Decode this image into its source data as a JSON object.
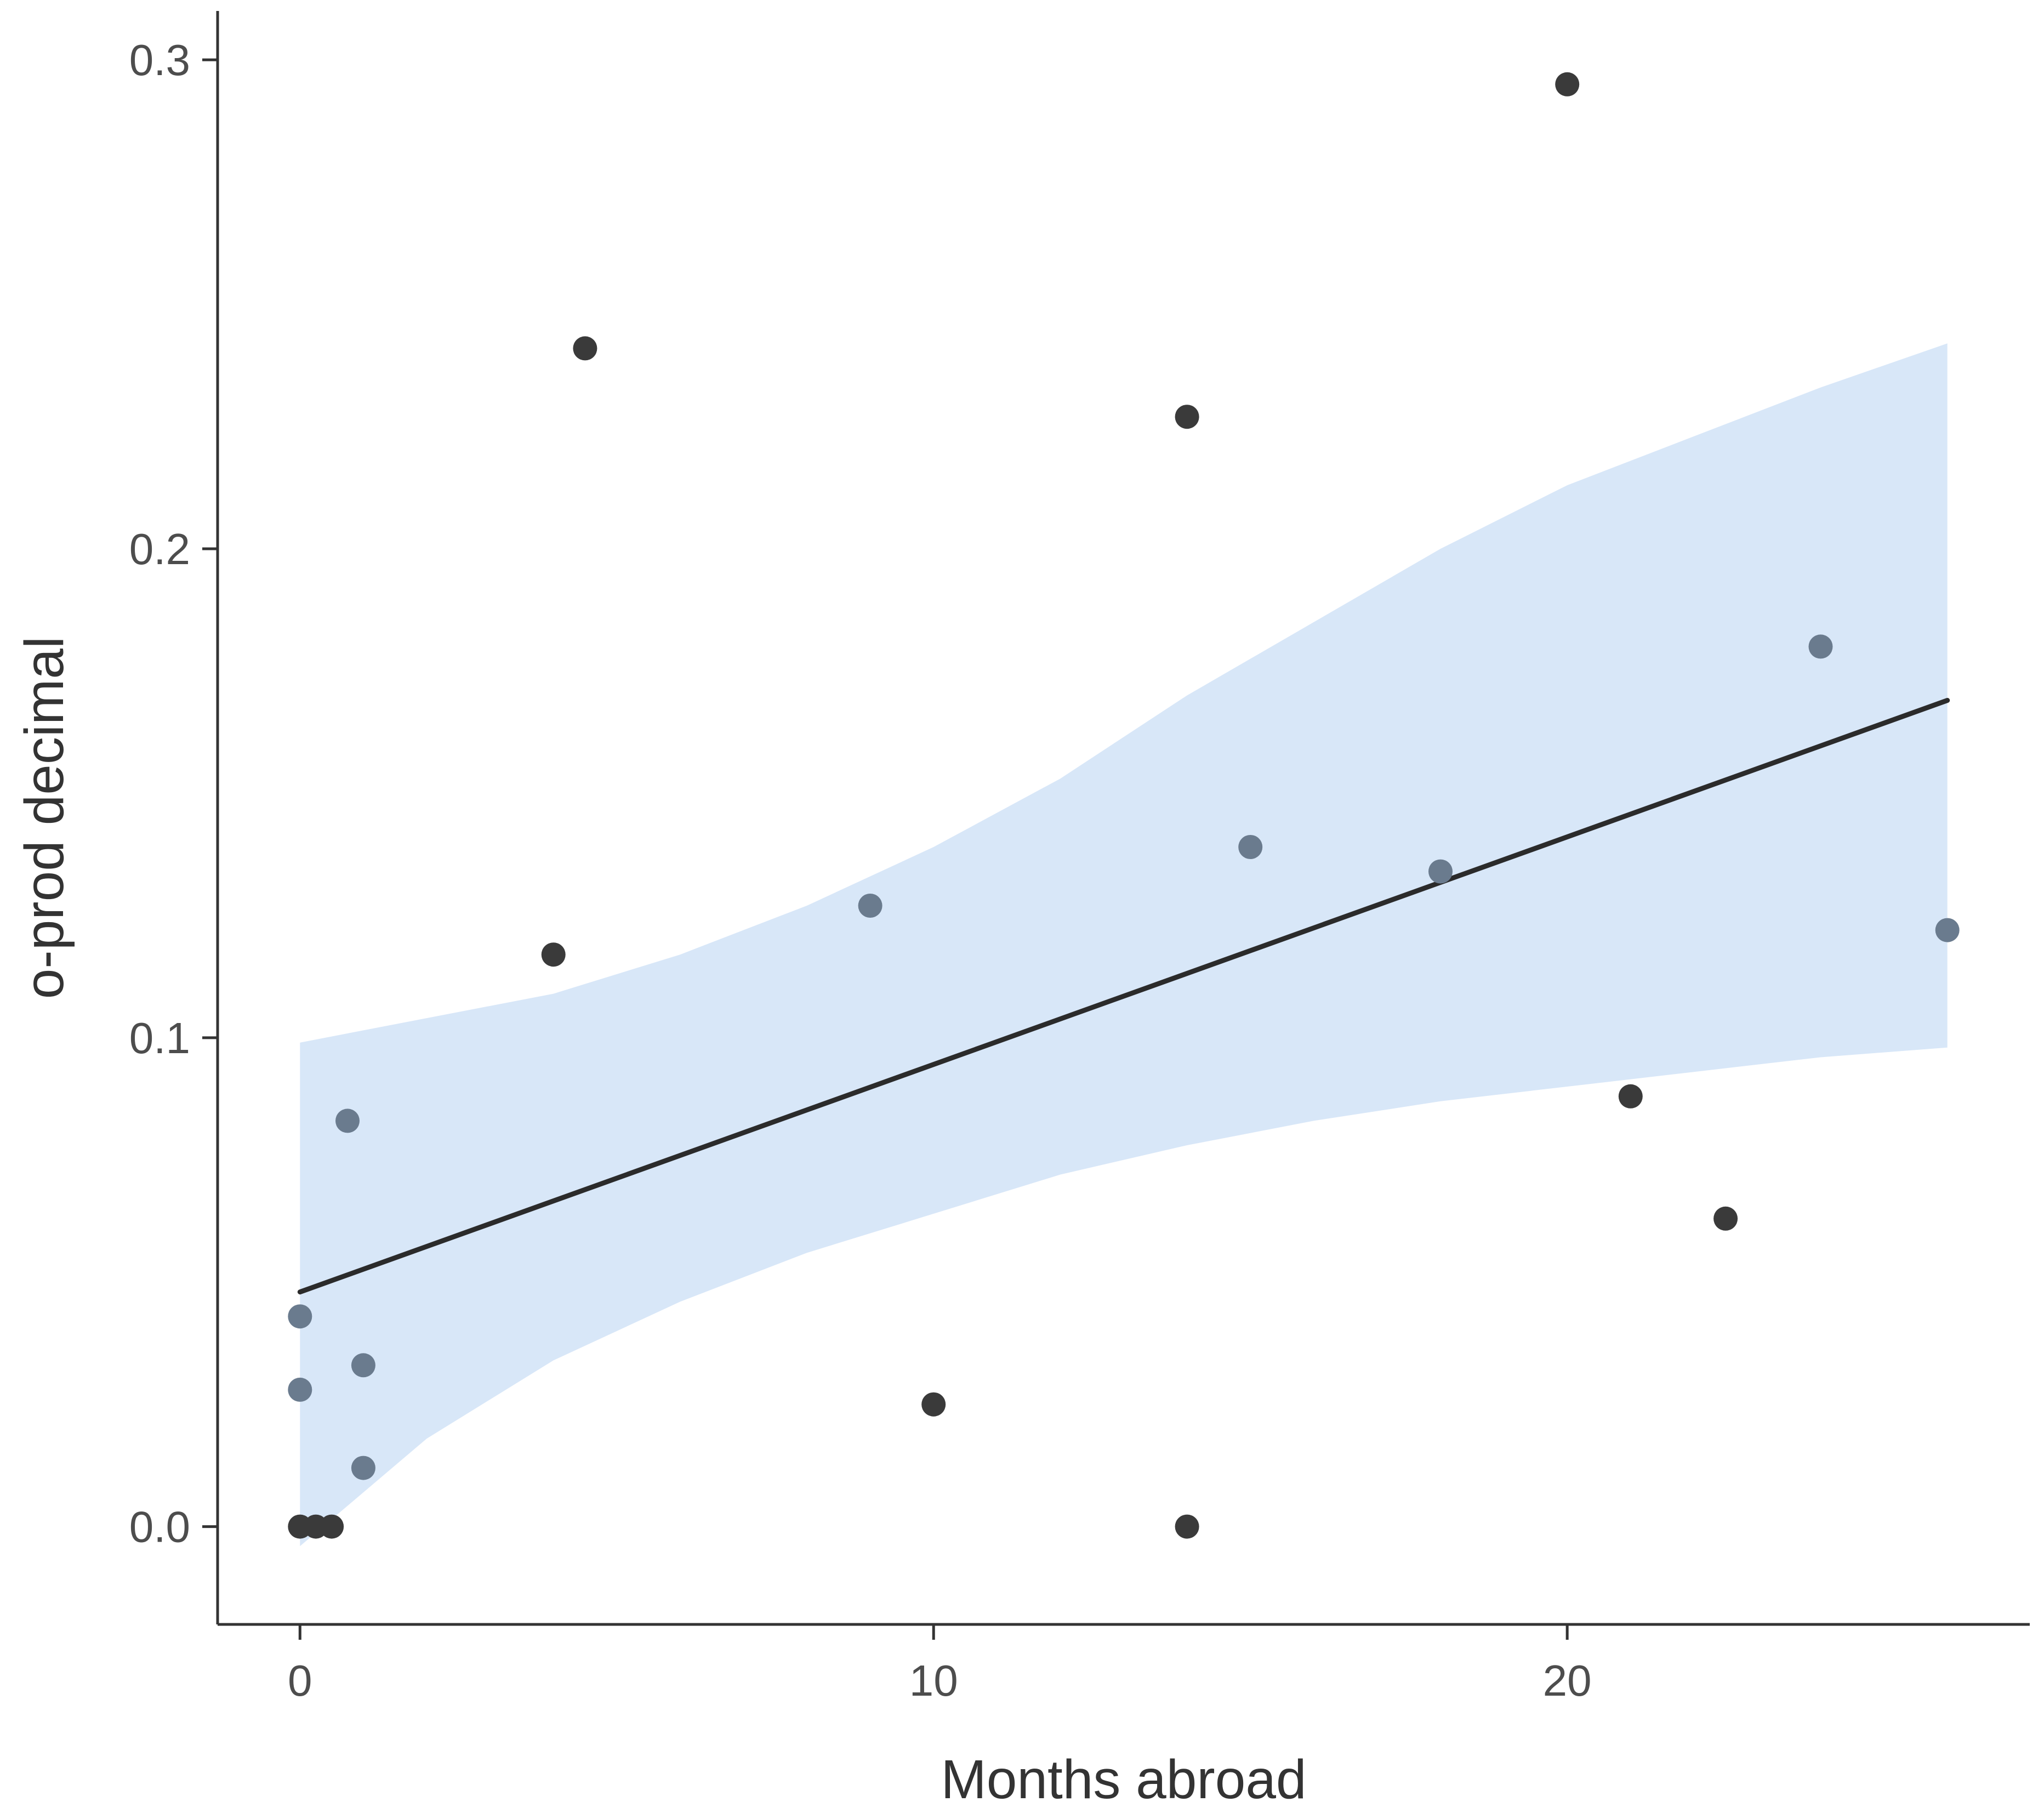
{
  "chart_data": {
    "type": "scatter",
    "title": "",
    "xlabel": "Months abroad",
    "ylabel": "o-prod decimal",
    "xlim": [
      -1.3,
      27.3
    ],
    "ylim": [
      -0.02,
      0.31
    ],
    "x_ticks": [
      {
        "value": 0,
        "label": "0"
      },
      {
        "value": 10,
        "label": "10"
      },
      {
        "value": 20,
        "label": "20"
      }
    ],
    "y_ticks": [
      {
        "value": 0.0,
        "label": "0.0"
      },
      {
        "value": 0.1,
        "label": "0.1"
      },
      {
        "value": 0.2,
        "label": "0.2"
      },
      {
        "value": 0.3,
        "label": "0.3"
      }
    ],
    "grid": false,
    "colors": {
      "point": "#3a3a3a",
      "point_overlap_band": "#6a7b8e",
      "fit_line": "#2b2b2b",
      "confidence_band": "#d8e7f8",
      "axis": "#333333",
      "tick_label": "#4d4d4d"
    },
    "series": [
      {
        "name": "observations",
        "points": [
          {
            "x": 0,
            "y": 0.0
          },
          {
            "x": 0.25,
            "y": 0.0
          },
          {
            "x": 0.5,
            "y": 0.0
          },
          {
            "x": 0,
            "y": 0.028
          },
          {
            "x": 0,
            "y": 0.043
          },
          {
            "x": 0.75,
            "y": 0.083
          },
          {
            "x": 1,
            "y": 0.033
          },
          {
            "x": 1,
            "y": 0.012
          },
          {
            "x": 4,
            "y": 0.117
          },
          {
            "x": 4.5,
            "y": 0.241
          },
          {
            "x": 9,
            "y": 0.127
          },
          {
            "x": 10,
            "y": 0.025
          },
          {
            "x": 14,
            "y": 0.227
          },
          {
            "x": 14,
            "y": 0.0
          },
          {
            "x": 15,
            "y": 0.139
          },
          {
            "x": 18,
            "y": 0.134
          },
          {
            "x": 20,
            "y": 0.295
          },
          {
            "x": 21,
            "y": 0.088
          },
          {
            "x": 22.5,
            "y": 0.063
          },
          {
            "x": 24,
            "y": 0.18
          },
          {
            "x": 26,
            "y": 0.122
          }
        ]
      }
    ],
    "fit_line": {
      "x": [
        0,
        26
      ],
      "y": [
        0.048,
        0.169
      ]
    },
    "confidence_band": {
      "x": [
        0,
        2,
        4,
        6,
        8,
        10,
        12,
        14,
        16,
        18,
        20,
        22,
        24,
        26
      ],
      "lower": [
        -0.004,
        0.018,
        0.034,
        0.046,
        0.056,
        0.064,
        0.072,
        0.078,
        0.083,
        0.087,
        0.09,
        0.093,
        0.096,
        0.098
      ],
      "upper": [
        0.099,
        0.104,
        0.109,
        0.117,
        0.127,
        0.139,
        0.153,
        0.17,
        0.185,
        0.2,
        0.213,
        0.223,
        0.233,
        0.242
      ]
    }
  }
}
